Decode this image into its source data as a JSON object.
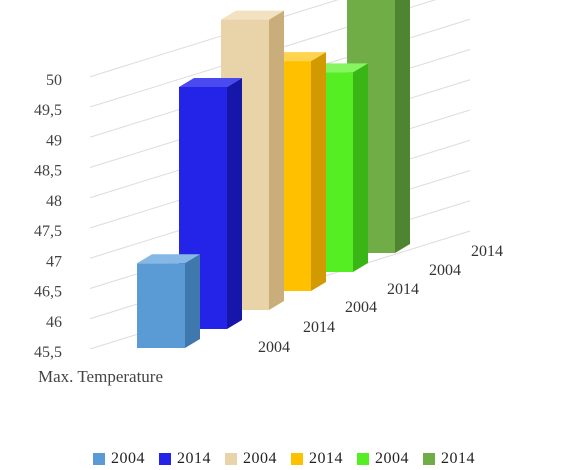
{
  "chart_data": {
    "type": "bar",
    "variant": "3d-column-perspective",
    "xlabel": "Max. Temperature",
    "ylabel": "",
    "ylim": [
      45.5,
      50
    ],
    "yticks": [
      "45,5",
      "46",
      "46,5",
      "47",
      "47,5",
      "48",
      "48,5",
      "49",
      "49,5",
      "50"
    ],
    "grid": true,
    "legend_position": "bottom",
    "series": [
      {
        "name": "2004",
        "value": 46.9,
        "depth_label": "2004",
        "color": "#5b9bd5",
        "side": "#3f78ad",
        "top": "#86b8e6"
      },
      {
        "name": "2014",
        "value": 49.5,
        "depth_label": "2014",
        "color": "#2424e8",
        "side": "#1616a8",
        "top": "#4a4af0"
      },
      {
        "name": "2004",
        "value": 50.3,
        "depth_label": "2004",
        "color": "#e9d3a8",
        "side": "#c9ad7a",
        "top": "#f2e2c2"
      },
      {
        "name": "2014",
        "value": 49.3,
        "depth_label": "2014",
        "color": "#ffc000",
        "side": "#d19a00",
        "top": "#ffd34d"
      },
      {
        "name": "2004",
        "value": 48.8,
        "depth_label": "2004",
        "color": "#55ee22",
        "side": "#39b515",
        "top": "#86f560"
      },
      {
        "name": "2014",
        "value": 50.5,
        "depth_label": "2014",
        "color": "#70ad47",
        "side": "#4f8530",
        "top": "#93c76d"
      }
    ]
  }
}
